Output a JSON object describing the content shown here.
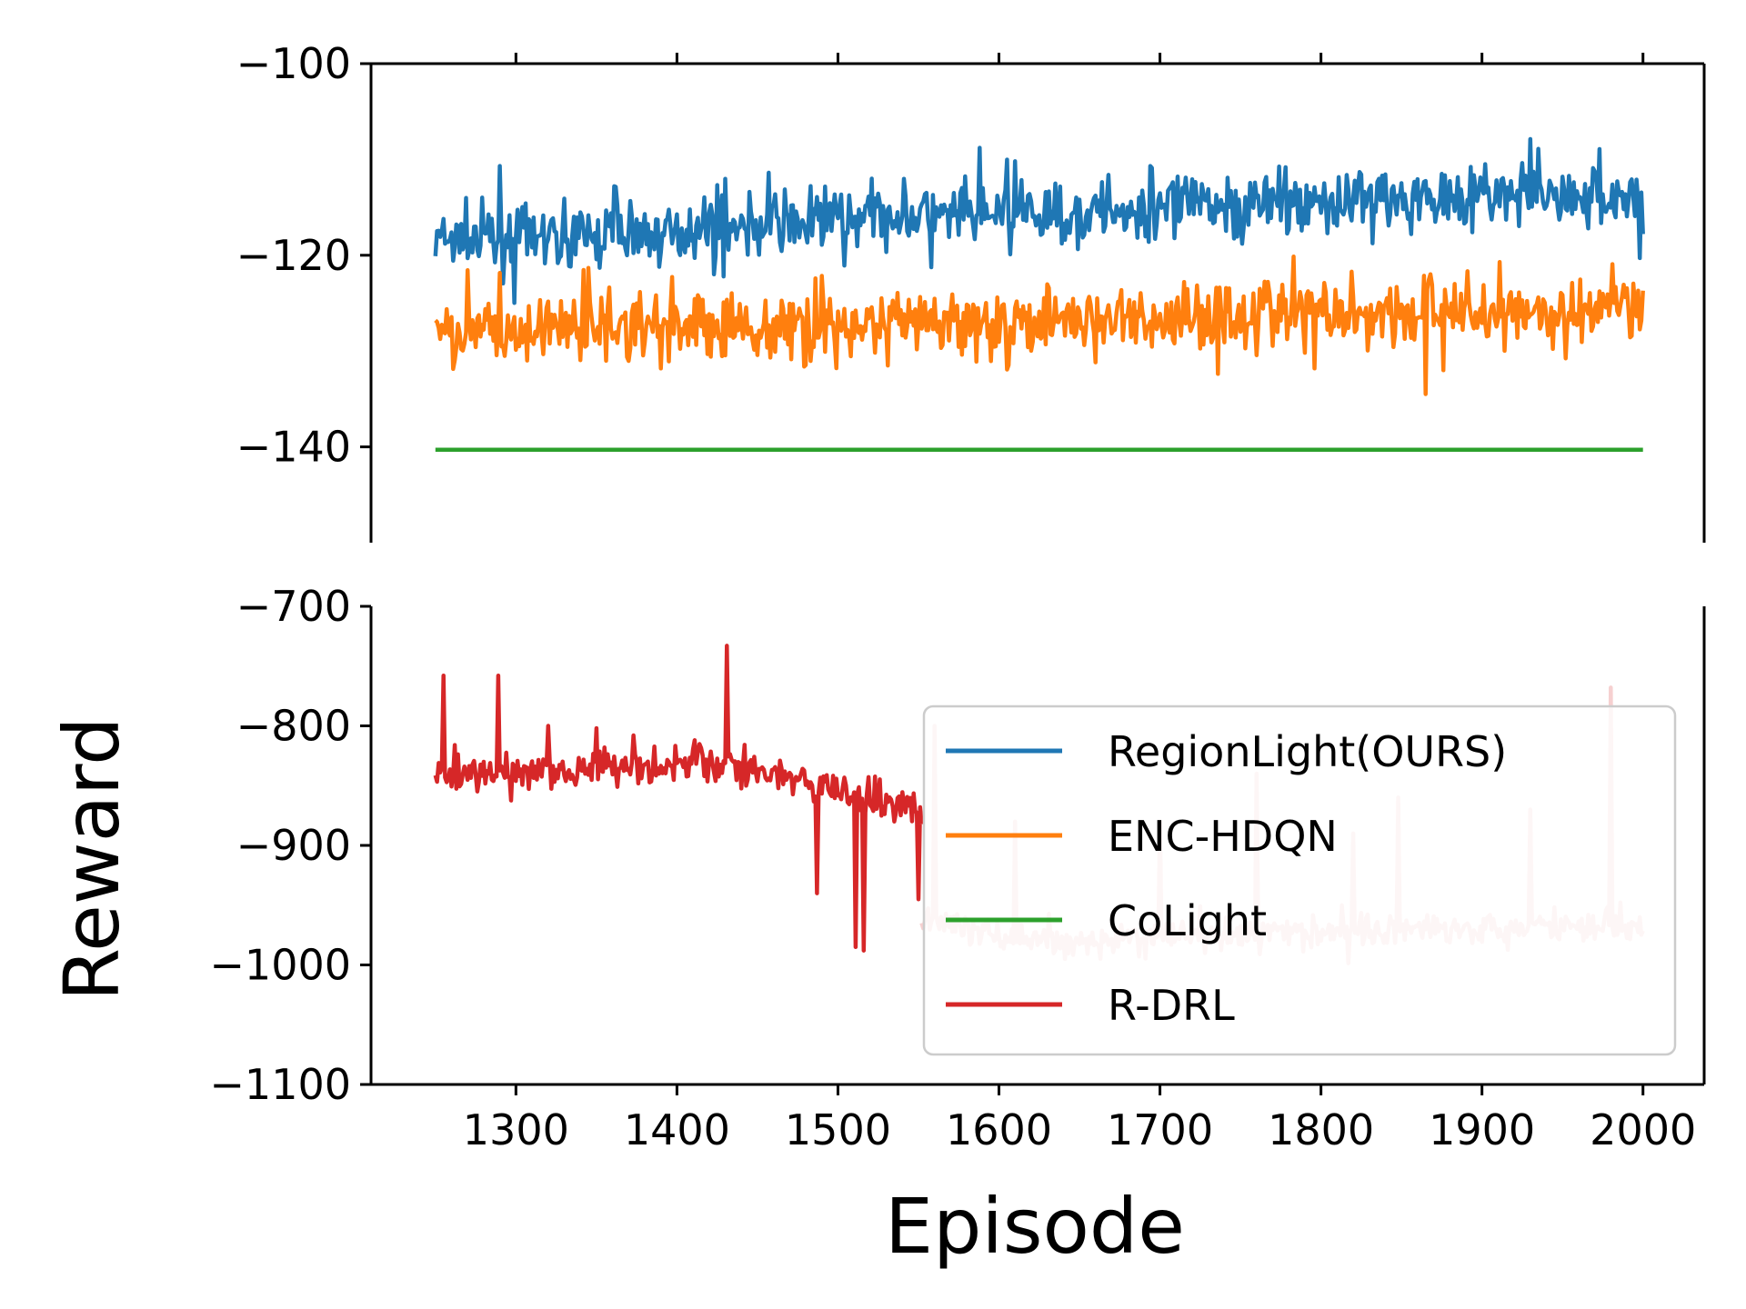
{
  "chart_data": {
    "type": "line",
    "xlabel": "Episode",
    "ylabel": "Reward",
    "xlim": [
      1210,
      2038
    ],
    "xticks": [
      1300,
      1400,
      1500,
      1600,
      1700,
      1800,
      1900,
      2000
    ],
    "legend": {
      "placement": "lower-right of bottom panel",
      "entries": [
        {
          "name": "RegionLight(OURS)",
          "color": "#1f77b4"
        },
        {
          "name": "ENC-HDQN",
          "color": "#ff7f0e"
        },
        {
          "name": "CoLight",
          "color": "#2ca02c"
        },
        {
          "name": "R-DRL",
          "color": "#d62728"
        }
      ]
    },
    "panels": [
      {
        "id": "top",
        "ylim": [
          -150,
          -100
        ],
        "yticks": [
          -100,
          -120,
          -140
        ],
        "ytick_labels": [
          "−100",
          "−120",
          "−140"
        ],
        "series": [
          {
            "name": "RegionLight(OURS)",
            "color": "#1f77b4",
            "x_start": 1250,
            "x_end": 2000,
            "trend": [
              [
                1250,
                -118.5
              ],
              [
                1400,
                -117.5
              ],
              [
                1500,
                -116
              ],
              [
                1600,
                -116
              ],
              [
                1700,
                -115
              ],
              [
                1800,
                -114.5
              ],
              [
                1900,
                -113.5
              ],
              [
                2000,
                -114
              ]
            ],
            "noise": 2.2
          },
          {
            "name": "ENC-HDQN",
            "color": "#ff7f0e",
            "x_start": 1250,
            "x_end": 2000,
            "trend": [
              [
                1250,
                -128
              ],
              [
                1400,
                -127.5
              ],
              [
                1500,
                -127.5
              ],
              [
                1600,
                -127
              ],
              [
                1700,
                -126.5
              ],
              [
                1800,
                -126
              ],
              [
                1900,
                -126
              ],
              [
                2000,
                -126
              ]
            ],
            "noise": 2.4
          },
          {
            "name": "CoLight",
            "color": "#2ca02c",
            "x_start": 1250,
            "x_end": 2000,
            "trend": [
              [
                1250,
                -140.3
              ],
              [
                2000,
                -140.3
              ]
            ],
            "noise": 0
          }
        ]
      },
      {
        "id": "bottom",
        "ylim": [
          -1100,
          -700
        ],
        "yticks": [
          -700,
          -800,
          -900,
          -1000,
          -1100
        ],
        "ytick_labels": [
          "−700",
          "−800",
          "−900",
          "−1000",
          "−1100"
        ],
        "series": [
          {
            "name": "R-DRL",
            "color": "#d62728",
            "x_start": 1250,
            "x_end": 2000,
            "segments": [
              {
                "x_start": 1250,
                "x_end": 1552,
                "trend": [
                  [
                    1250,
                    -842
                  ],
                  [
                    1400,
                    -830
                  ],
                  [
                    1450,
                    -836
                  ],
                  [
                    1500,
                    -855
                  ],
                  [
                    1552,
                    -870
                  ]
                ],
                "noise": 10,
                "spikes": [
                  [
                    1255,
                    -758
                  ],
                  [
                    1289,
                    -758
                  ],
                  [
                    1431,
                    -733
                  ],
                  [
                    1320,
                    -800
                  ],
                  [
                    1350,
                    -802
                  ],
                  [
                    1373,
                    -808
                  ],
                  [
                    1411,
                    -812
                  ],
                  [
                    1487,
                    -940
                  ],
                  [
                    1511,
                    -985
                  ],
                  [
                    1516,
                    -988
                  ],
                  [
                    1535,
                    -880
                  ],
                  [
                    1550,
                    -945
                  ]
                ]
              },
              {
                "x_start": 1552,
                "x_end": 2000,
                "faded": true,
                "trend": [
                  [
                    1552,
                    -960
                  ],
                  [
                    1600,
                    -975
                  ],
                  [
                    1650,
                    -982
                  ],
                  [
                    1700,
                    -975
                  ],
                  [
                    1800,
                    -972
                  ],
                  [
                    1900,
                    -968
                  ],
                  [
                    2000,
                    -965
                  ]
                ],
                "noise": 8,
                "spikes": [
                  [
                    1560,
                    -800
                  ],
                  [
                    1610,
                    -880
                  ],
                  [
                    1700,
                    -880
                  ],
                  [
                    1760,
                    -840
                  ],
                  [
                    1820,
                    -890
                  ],
                  [
                    1848,
                    -860
                  ],
                  [
                    1930,
                    -870
                  ],
                  [
                    1980,
                    -768
                  ]
                ]
              }
            ]
          }
        ]
      }
    ]
  }
}
